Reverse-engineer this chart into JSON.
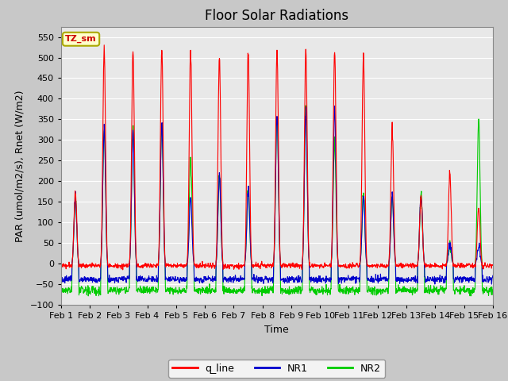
{
  "title": "Floor Solar Radiations",
  "xlabel": "Time",
  "ylabel": "PAR (umol/m2/s), Rnet (W/m2)",
  "ylim": [
    -100,
    575
  ],
  "yticks": [
    -100,
    -50,
    0,
    50,
    100,
    150,
    200,
    250,
    300,
    350,
    400,
    450,
    500,
    550
  ],
  "xlim_start": 0,
  "xlim_end": 15,
  "xtick_labels": [
    "Feb 1",
    "Feb 2",
    "Feb 3",
    "Feb 4",
    "Feb 5",
    "Feb 6",
    "Feb 7",
    "Feb 8",
    "Feb 9",
    "Feb 10",
    "Feb 11",
    "Feb 12",
    "Feb 13",
    "Feb 14",
    "Feb 15",
    "Feb 16"
  ],
  "line_colors": {
    "q_line": "#ff0000",
    "NR1": "#0000cc",
    "NR2": "#00cc00"
  },
  "line_widths": {
    "q_line": 0.8,
    "NR1": 0.8,
    "NR2": 0.8
  },
  "legend_labels": [
    "q_line",
    "NR1",
    "NR2"
  ],
  "annotation_text": "TZ_sm",
  "annotation_box_facecolor": "#ffffcc",
  "annotation_box_edgecolor": "#aaa800",
  "fig_facecolor": "#c8c8c8",
  "plot_facecolor": "#e8e8e8",
  "grid_color": "#ffffff",
  "title_fontsize": 12,
  "tick_fontsize": 8,
  "ylabel_fontsize": 9,
  "xlabel_fontsize": 9,
  "q_peaks": [
    175,
    520,
    515,
    520,
    520,
    502,
    515,
    515,
    515,
    515,
    505,
    323,
    167,
    222,
    135
  ],
  "NR1_peaks": [
    160,
    330,
    325,
    340,
    160,
    215,
    185,
    365,
    375,
    370,
    165,
    165,
    170,
    50,
    45
  ],
  "NR2_peaks": [
    163,
    328,
    327,
    338,
    254,
    213,
    188,
    360,
    380,
    293,
    170,
    167,
    165,
    48,
    352
  ],
  "q_night": -10,
  "NR1_night": -38,
  "NR2_night": -65,
  "pts_per_day": 96,
  "n_days": 15
}
